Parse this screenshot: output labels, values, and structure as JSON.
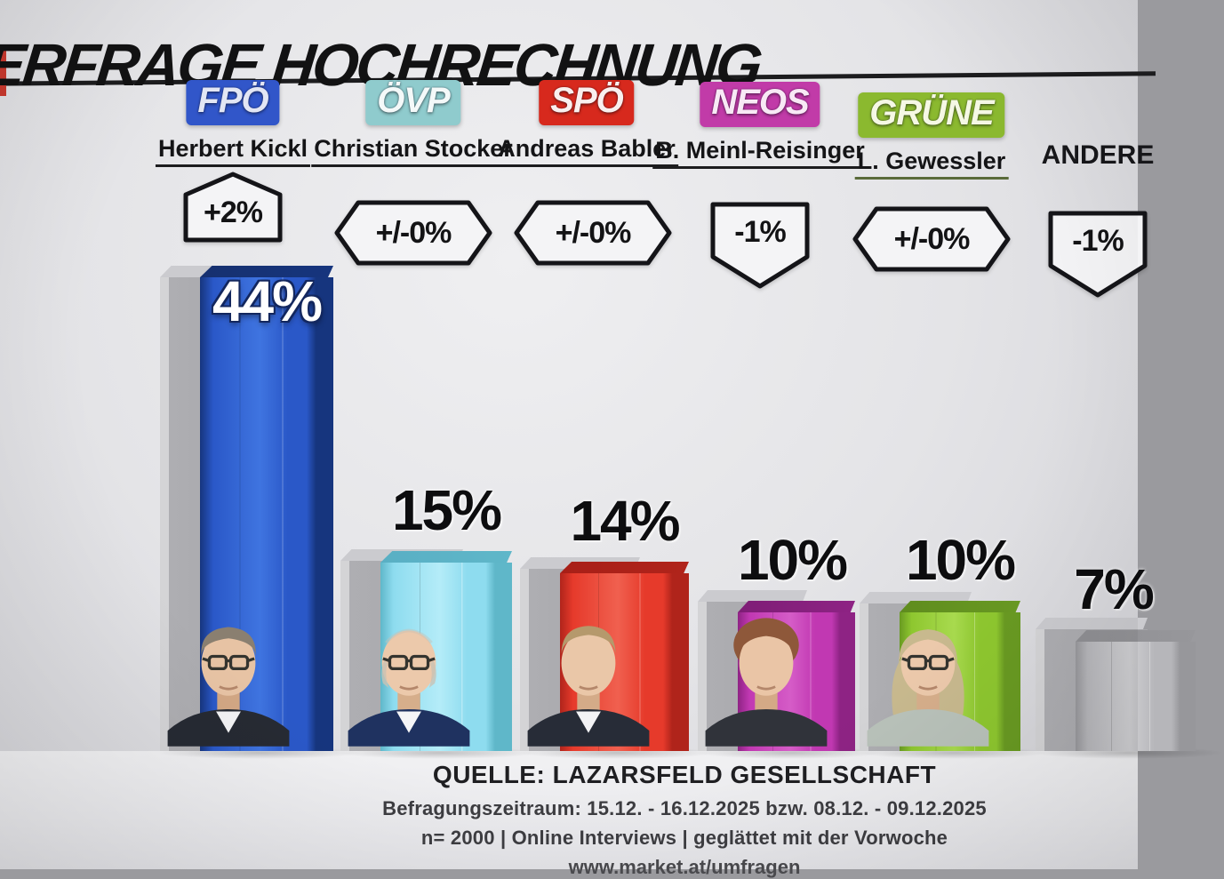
{
  "title": "ERFRAGE HOCHRECHNUNG",
  "chart_data": {
    "type": "bar",
    "title": "ERFRAGE HOCHRECHNUNG",
    "categories": [
      "FPÖ",
      "ÖVP",
      "SPÖ",
      "NEOS",
      "GRÜNE",
      "ANDERE"
    ],
    "values": [
      44,
      15,
      14,
      10,
      10,
      7
    ],
    "value_labels": [
      "44%",
      "15%",
      "14%",
      "10%",
      "10%",
      "7%"
    ],
    "changes": [
      "+2%",
      "+/-0%",
      "+/-0%",
      "-1%",
      "+/-0%",
      "-1%"
    ],
    "candidates": [
      "Herbert Kickl",
      "Christian Stocker",
      "Andreas Babler",
      "B. Meinl-Reisinger",
      "L. Gewessler",
      ""
    ],
    "bar_colors": [
      "#2a58c8",
      "#8edcef",
      "#e63a2b",
      "#c138b2",
      "#8ec72f",
      "#b6b6ba"
    ],
    "ylim": [
      0,
      50
    ],
    "grid": false,
    "legend": false,
    "note": "gray backdrop bars show previous-week values (unlabeled)"
  },
  "parties": [
    {
      "name": "FPÖ",
      "candidate": "Herbert Kickl",
      "value": 44,
      "value_label": "44%",
      "change_label": "+2%",
      "change_shape": "pentagon-up",
      "badge_bg": "#3156c9",
      "badge_fg": "#e2e6f4",
      "bar_face": "#2a58c8",
      "bar_face_light": "#3f74e0",
      "bar_side": "#16357e",
      "bar_top": "#16306f",
      "underline": "#1c1c1e",
      "value_style": "on-bar",
      "photo": "kickl"
    },
    {
      "name": "ÖVP",
      "candidate": "Christian Stocker",
      "value": 15,
      "value_label": "15%",
      "change_label": "+/-0%",
      "change_shape": "hexagon",
      "badge_bg": "#8fcbcd",
      "badge_fg": "#f4f9f9",
      "bar_face": "#8edcef",
      "bar_face_light": "#b4ecf8",
      "bar_side": "#5fb7c9",
      "bar_top": "#59afc4",
      "underline": "#1c1c1e",
      "value_style": "above",
      "photo": "stocker"
    },
    {
      "name": "SPÖ",
      "candidate": "Andreas Babler",
      "value": 14,
      "value_label": "14%",
      "change_label": "+/-0%",
      "change_shape": "hexagon",
      "badge_bg": "#d7291d",
      "badge_fg": "#f9efee",
      "bar_face": "#e63a2b",
      "bar_face_light": "#f0604f",
      "bar_side": "#b0241b",
      "bar_top": "#a81f17",
      "underline": "#1c1c1e",
      "value_style": "above",
      "photo": "babler"
    },
    {
      "name": "NEOS",
      "candidate": "B. Meinl-Reisinger",
      "value": 10,
      "value_label": "10%",
      "change_label": "-1%",
      "change_shape": "pentagon-down",
      "badge_bg": "#c13ba8",
      "badge_fg": "#f8e9f5",
      "bar_face": "#c138b2",
      "bar_face_light": "#d55cc7",
      "bar_side": "#8e2384",
      "bar_top": "#7e1d76",
      "underline": "#1c1c1e",
      "value_style": "above",
      "photo": "meinl"
    },
    {
      "name": "GRÜNE",
      "candidate": "L. Gewessler",
      "value": 10,
      "value_label": "10%",
      "change_label": "+/-0%",
      "change_shape": "hexagon",
      "badge_bg": "#8bb92f",
      "badge_fg": "#f5f8e4",
      "bar_face": "#8ec72f",
      "bar_face_light": "#a8da4e",
      "bar_side": "#699a22",
      "bar_top": "#5f8c1e",
      "underline": "#5a6b3a",
      "value_style": "above",
      "photo": "gewessler"
    },
    {
      "name": "ANDERE",
      "candidate": "",
      "value": 7,
      "value_label": "7%",
      "change_label": "-1%",
      "change_shape": "pentagon-down",
      "badge_bg": null,
      "badge_fg": "#17171a",
      "bar_face": "#b6b6ba",
      "bar_face_light": "#cfcfd2",
      "bar_side": "#97979b",
      "bar_top": "#8f8f93",
      "underline": "#1c1c1e",
      "value_style": "above",
      "photo": null
    }
  ],
  "source": {
    "line1": "QUELLE: LAZARSFELD GESELLSCHAFT",
    "line2": "Befragungszeitraum:  15.12. - 16.12.2025  bzw. 08.12. - 09.12.2025",
    "line3": "n= 2000 | Online Interviews | geglättet mit der Vorwoche",
    "line4": "www.market.at/umfragen"
  }
}
